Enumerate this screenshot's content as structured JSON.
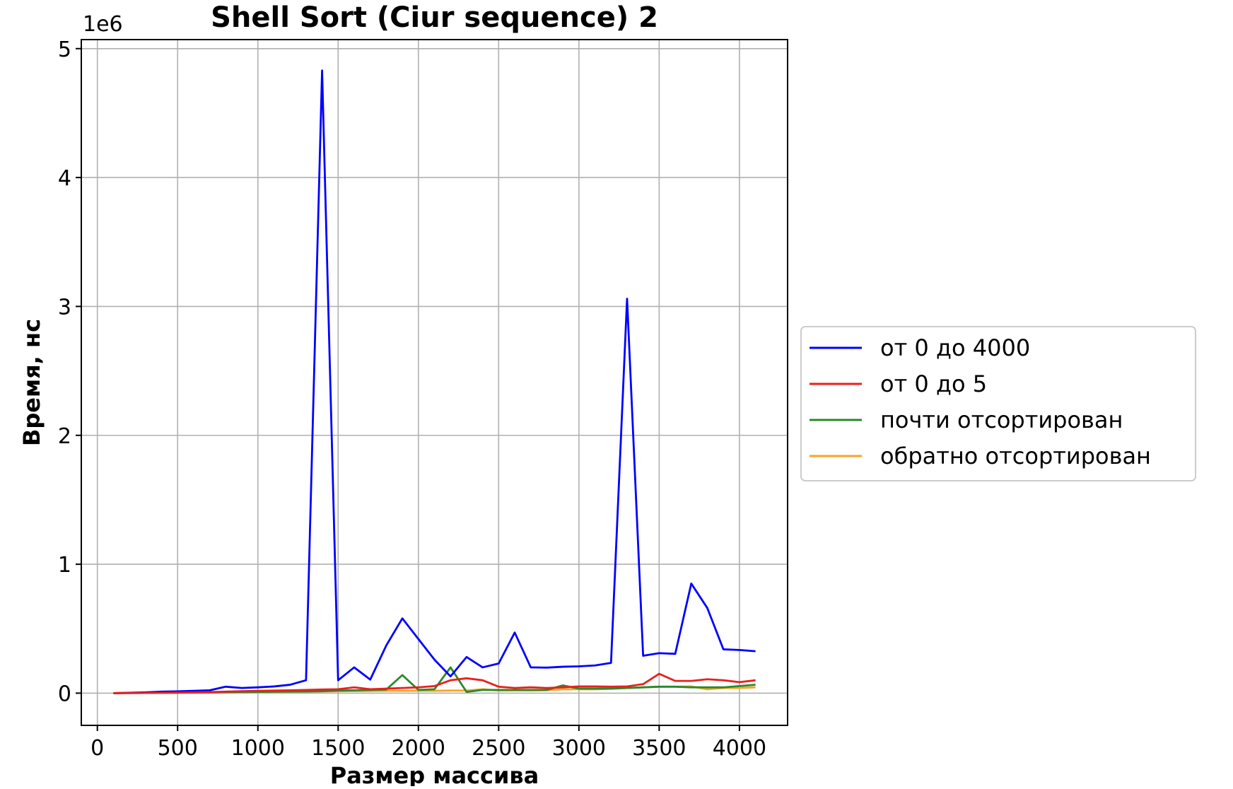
{
  "chart_data": {
    "type": "line",
    "title": "Shell Sort (Ciur sequence) 2",
    "xlabel": "Размер массива",
    "ylabel": "Время, нс",
    "y_offset_text": "1e6",
    "xlim": [
      -100,
      4300
    ],
    "ylim": [
      -250000,
      5070000
    ],
    "x_ticks": [
      0,
      500,
      1000,
      1500,
      2000,
      2500,
      3000,
      3500,
      4000
    ],
    "x_tick_labels": [
      "0",
      "500",
      "1000",
      "1500",
      "2000",
      "2500",
      "3000",
      "3500",
      "4000"
    ],
    "y_ticks": [
      0,
      1000000,
      2000000,
      3000000,
      4000000,
      5000000
    ],
    "y_tick_labels": [
      "0",
      "1",
      "2",
      "3",
      "4",
      "5"
    ],
    "grid": true,
    "legend_position": "center-right outside",
    "x": [
      100,
      200,
      300,
      400,
      500,
      600,
      700,
      800,
      900,
      1000,
      1100,
      1200,
      1300,
      1400,
      1500,
      1600,
      1700,
      1800,
      1900,
      2000,
      2100,
      2200,
      2300,
      2400,
      2500,
      2600,
      2700,
      2800,
      2900,
      3000,
      3100,
      3200,
      3300,
      3400,
      3500,
      3600,
      3700,
      3800,
      3900,
      4000,
      4100
    ],
    "series": [
      {
        "name": "от 0 до 4000",
        "color": "#0000ff",
        "values": [
          0,
          3000,
          6000,
          12000,
          14000,
          18000,
          22000,
          50000,
          40000,
          45000,
          52000,
          65000,
          100000,
          4830000,
          100000,
          200000,
          105000,
          370000,
          580000,
          420000,
          260000,
          130000,
          280000,
          200000,
          230000,
          470000,
          200000,
          198000,
          205000,
          208000,
          215000,
          235000,
          3060000,
          290000,
          310000,
          305000,
          850000,
          660000,
          340000,
          335000,
          325000
        ]
      },
      {
        "name": "от 0 до 5",
        "color": "#e8211c",
        "values": [
          0,
          1000,
          2000,
          3000,
          4000,
          6000,
          8000,
          12000,
          15000,
          18000,
          20000,
          22000,
          25000,
          28000,
          30000,
          45000,
          30000,
          35000,
          40000,
          45000,
          55000,
          100000,
          115000,
          100000,
          50000,
          40000,
          45000,
          40000,
          45000,
          52000,
          52000,
          50000,
          52000,
          70000,
          150000,
          95000,
          95000,
          108000,
          100000,
          85000,
          100000
        ]
      },
      {
        "name": "почти отсортирован",
        "color": "#2a8a2a",
        "values": [
          0,
          1000,
          2000,
          3000,
          4000,
          5000,
          6000,
          8000,
          9000,
          10000,
          11000,
          12000,
          13000,
          15000,
          20000,
          22000,
          25000,
          28000,
          140000,
          25000,
          30000,
          200000,
          10000,
          25000,
          25000,
          25000,
          25000,
          25000,
          60000,
          35000,
          35000,
          35000,
          40000,
          45000,
          50000,
          50000,
          45000,
          45000,
          45000,
          55000,
          65000
        ]
      },
      {
        "name": "обратно отсортирован",
        "color": "#f5a623",
        "values": [
          0,
          1000,
          2000,
          3000,
          4000,
          5000,
          6000,
          7000,
          8000,
          9000,
          10000,
          11000,
          12000,
          14000,
          15000,
          16000,
          17000,
          18000,
          18000,
          18000,
          18000,
          20000,
          20000,
          30000,
          20000,
          20000,
          20000,
          22000,
          30000,
          30000,
          30000,
          35000,
          40000,
          45000,
          50000,
          50000,
          52000,
          30000,
          40000,
          40000,
          45000
        ]
      }
    ]
  }
}
